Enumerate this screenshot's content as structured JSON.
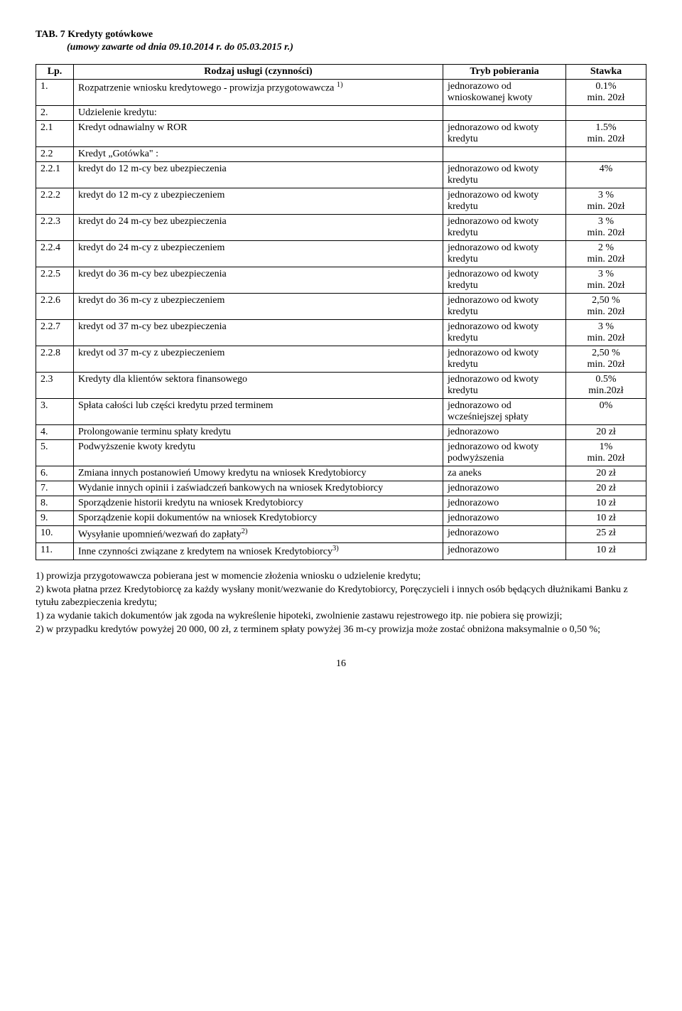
{
  "title": "TAB. 7 Kredyty gotówkowe",
  "subtitle": "(umowy zawarte od dnia 09.10.2014 r. do 05.03.2015 r.)",
  "header": {
    "lp": "Lp.",
    "service": "Rodzaj usługi (czynności)",
    "tryb": "Tryb pobierania",
    "stawka": "Stawka"
  },
  "rows": [
    {
      "lp": "1.",
      "service": "Rozpatrzenie wniosku kredytowego - prowizja przygotowawcza ",
      "sup": "1)",
      "tryb": "jednorazowo od wnioskowanej kwoty",
      "stawka": "0.1%\nmin. 20zł"
    },
    {
      "lp": "2.",
      "service": "Udzielenie kredytu:",
      "tryb": "",
      "stawka": ""
    },
    {
      "lp": "2.1",
      "service": "Kredyt odnawialny w ROR",
      "tryb": "jednorazowo od kwoty kredytu",
      "stawka": "1.5%\nmin. 20zł"
    },
    {
      "lp": "2.2",
      "service": "Kredyt „Gotówka\" :",
      "tryb": "",
      "stawka": ""
    },
    {
      "lp": "2.2.1",
      "service": "kredyt do 12 m-cy bez ubezpieczenia",
      "tryb": "jednorazowo od kwoty kredytu",
      "stawka": "4%"
    },
    {
      "lp": "2.2.2",
      "service": "kredyt do 12 m-cy z ubezpieczeniem",
      "tryb": "jednorazowo od kwoty kredytu",
      "stawka": "3 %\nmin. 20zł"
    },
    {
      "lp": "2.2.3",
      "service": "kredyt do 24 m-cy bez ubezpieczenia",
      "tryb": "jednorazowo od kwoty kredytu",
      "stawka": "3 %\nmin. 20zł"
    },
    {
      "lp": "2.2.4",
      "service": "kredyt do 24 m-cy z ubezpieczeniem",
      "tryb": "jednorazowo od kwoty kredytu",
      "stawka": "2 %\nmin. 20zł"
    },
    {
      "lp": "2.2.5",
      "service": "kredyt do 36 m-cy bez ubezpieczenia",
      "tryb": "jednorazowo od kwoty kredytu",
      "stawka": "3 %\nmin. 20zł"
    },
    {
      "lp": "2.2.6",
      "service": "kredyt do 36 m-cy z ubezpieczeniem",
      "tryb": "jednorazowo od kwoty kredytu",
      "stawka": "2,50 %\nmin. 20zł"
    },
    {
      "lp": "2.2.7",
      "service": "kredyt od 37 m-cy bez ubezpieczenia",
      "tryb": "jednorazowo od kwoty kredytu",
      "stawka": "3 %\nmin. 20zł"
    },
    {
      "lp": "2.2.8",
      "service": "kredyt od 37 m-cy z ubezpieczeniem",
      "tryb": "jednorazowo od kwoty kredytu",
      "stawka": "2,50 %\nmin. 20zł"
    },
    {
      "lp": "2.3",
      "service": "Kredyty dla klientów sektora finansowego",
      "tryb": "jednorazowo od kwoty kredytu",
      "stawka": "0.5%\nmin.20zł"
    },
    {
      "lp": "3.",
      "service": "Spłata całości lub części kredytu przed terminem",
      "tryb": "jednorazowo od wcześniejszej spłaty",
      "stawka": "0%"
    },
    {
      "lp": "4.",
      "service": "Prolongowanie terminu spłaty kredytu",
      "tryb": "jednorazowo",
      "stawka": "20 zł"
    },
    {
      "lp": "5.",
      "service": "Podwyższenie kwoty kredytu",
      "tryb": "jednorazowo od kwoty podwyższenia",
      "stawka": "1%\nmin. 20zł"
    },
    {
      "lp": "6.",
      "service": "Zmiana innych postanowień Umowy kredytu na wniosek Kredytobiorcy",
      "tryb": "za aneks",
      "stawka": "20 zł"
    },
    {
      "lp": "7.",
      "service": "Wydanie innych opinii i zaświadczeń bankowych na wniosek Kredytobiorcy",
      "tryb": "jednorazowo",
      "stawka": "20 zł"
    },
    {
      "lp": "8.",
      "service": "Sporządzenie historii kredytu na wniosek Kredytobiorcy",
      "tryb": "jednorazowo",
      "stawka": "10 zł"
    },
    {
      "lp": "9.",
      "service": "Sporządzenie kopii dokumentów na wniosek Kredytobiorcy",
      "tryb": "jednorazowo",
      "stawka": "10 zł"
    },
    {
      "lp": "10.",
      "service": "Wysyłanie upomnień/wezwań do zapłaty",
      "sup": "2)",
      "tryb": "jednorazowo",
      "stawka": "25 zł"
    },
    {
      "lp": "11.",
      "service": "Inne czynności związane z kredytem na wniosek Kredytobiorcy",
      "sup": "3)",
      "tryb": "jednorazowo",
      "stawka": "10 zł"
    }
  ],
  "notes": [
    "1) prowizja przygotowawcza pobierana jest w momencie złożenia wniosku o udzielenie kredytu;",
    "2) kwota płatna przez Kredytobiorcę za każdy wysłany monit/wezwanie do Kredytobiorcy, Poręczycieli i innych osób będących dłużnikami Banku z tytułu zabezpieczenia kredytu;",
    "1)    za wydanie takich dokumentów jak zgoda na wykreślenie hipoteki, zwolnienie zastawu rejestrowego itp. nie pobiera się prowizji;",
    "2) w przypadku kredytów powyżej 20 000, 00 zł, z terminem spłaty powyżej 36 m-cy prowizja może zostać obniżona maksymalnie o 0,50 %;"
  ],
  "page_num": "16"
}
